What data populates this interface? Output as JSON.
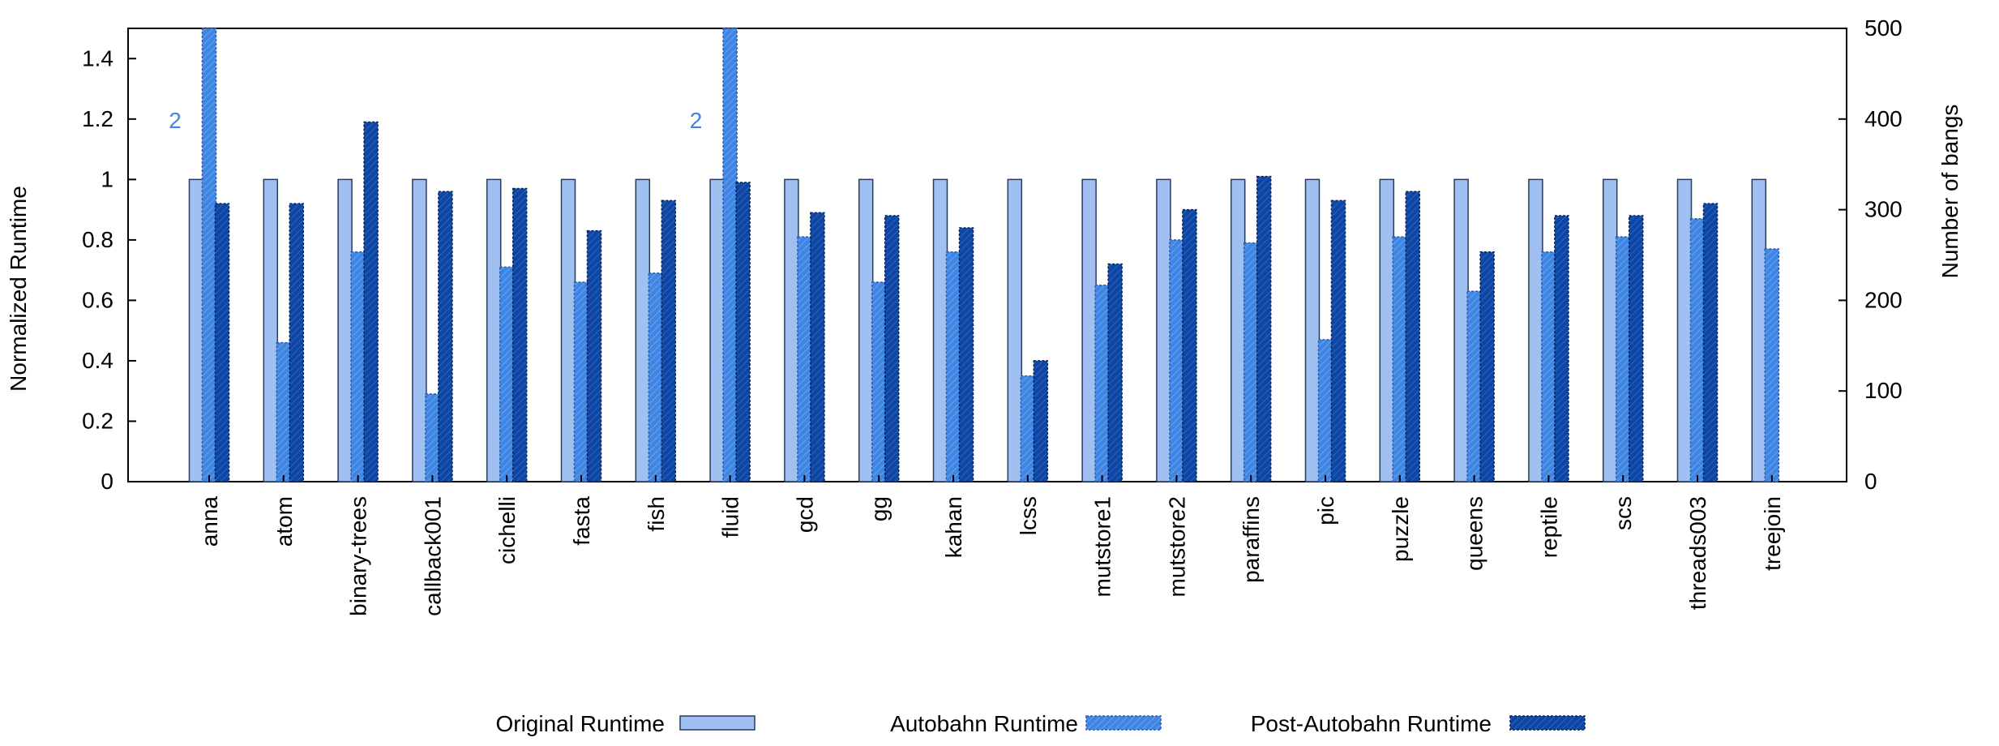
{
  "chart_data": {
    "type": "bar",
    "categories": [
      "anna",
      "atom",
      "binary-trees",
      "callback001",
      "cichelli",
      "fasta",
      "fish",
      "fluid",
      "gcd",
      "gg",
      "kahan",
      "lcss",
      "mutstore1",
      "mutstore2",
      "paraffins",
      "pic",
      "puzzle",
      "queens",
      "reptile",
      "scs",
      "threads003",
      "treejoin"
    ],
    "series": [
      {
        "name": "Original Runtime",
        "color": "#9fc0f0",
        "values": [
          1,
          1,
          1,
          1,
          1,
          1,
          1,
          1,
          1,
          1,
          1,
          1,
          1,
          1,
          1,
          1,
          1,
          1,
          1,
          1,
          1,
          1
        ]
      },
      {
        "name": "Autobahn Runtime",
        "color": "#3f86e4",
        "values": [
          2,
          0.46,
          0.76,
          0.29,
          0.71,
          0.66,
          0.69,
          2,
          0.81,
          0.66,
          0.76,
          0.35,
          0.65,
          0.8,
          0.79,
          0.47,
          0.81,
          0.63,
          0.76,
          0.81,
          0.87,
          0.77
        ]
      },
      {
        "name": "Post-Autobahn Runtime",
        "color": "#0f46a4",
        "values": [
          0.92,
          0.92,
          1.19,
          0.96,
          0.97,
          0.83,
          0.93,
          0.99,
          0.89,
          0.88,
          0.84,
          0.4,
          0.72,
          0.9,
          1.01,
          0.93,
          0.96,
          0.76,
          0.88,
          0.88,
          0.92,
          null
        ]
      }
    ],
    "overflow_labels": [
      "2",
      "2"
    ],
    "overflow_categories": [
      "anna",
      "fluid"
    ],
    "ylabel": "Normalized Runtime",
    "y2label": "Number of bangs",
    "ylim": [
      0,
      1.5
    ],
    "y2lim": [
      0,
      500
    ],
    "yticks": [
      "0",
      "0.2",
      "0.4",
      "0.6",
      "0.8",
      "1",
      "1.2",
      "1.4"
    ],
    "y2ticks": [
      "0",
      "100",
      "200",
      "300",
      "400",
      "500"
    ],
    "legend_position": "bottom"
  }
}
